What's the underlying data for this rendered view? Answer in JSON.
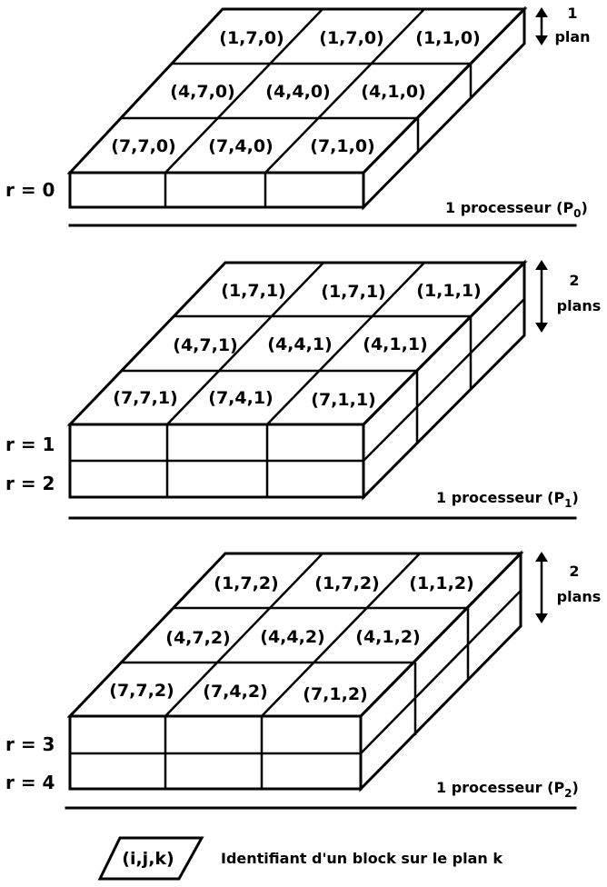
{
  "blocks": [
    {
      "rank_labels": [
        "r = 0"
      ],
      "processor": {
        "prefix": "1 processeur (P",
        "index": "0",
        "suffix": ")"
      },
      "plan_label": [
        "1",
        "plan"
      ],
      "cells": [
        [
          "(1,7,0)",
          "(1,7,0)",
          "(1,1,0)"
        ],
        [
          "(4,7,0)",
          "(4,4,0)",
          "(4,1,0)"
        ],
        [
          "(7,7,0)",
          "(7,4,0)",
          "(7,1,0)"
        ]
      ]
    },
    {
      "rank_labels": [
        "r = 1",
        "r = 2"
      ],
      "processor": {
        "prefix": "1 processeur (P",
        "index": "1",
        "suffix": ")"
      },
      "plan_label": [
        "2",
        "plans"
      ],
      "cells": [
        [
          "(1,7,1)",
          "(1,7,1)",
          "(1,1,1)"
        ],
        [
          "(4,7,1)",
          "(4,4,1)",
          "(4,1,1)"
        ],
        [
          "(7,7,1)",
          "(7,4,1)",
          "(7,1,1)"
        ]
      ]
    },
    {
      "rank_labels": [
        "r = 3",
        "r = 4"
      ],
      "processor": {
        "prefix": "1 processeur (P",
        "index": "2",
        "suffix": ")"
      },
      "plan_label": [
        "2",
        "plans"
      ],
      "cells": [
        [
          "(1,7,2)",
          "(1,7,2)",
          "(1,1,2)"
        ],
        [
          "(4,7,2)",
          "(4,4,2)",
          "(4,1,2)"
        ],
        [
          "(7,7,2)",
          "(7,4,2)",
          "(7,1,2)"
        ]
      ]
    }
  ],
  "legend": {
    "symbol": "(i,j,k)",
    "text": "Identifiant d'un block sur le plan k"
  }
}
